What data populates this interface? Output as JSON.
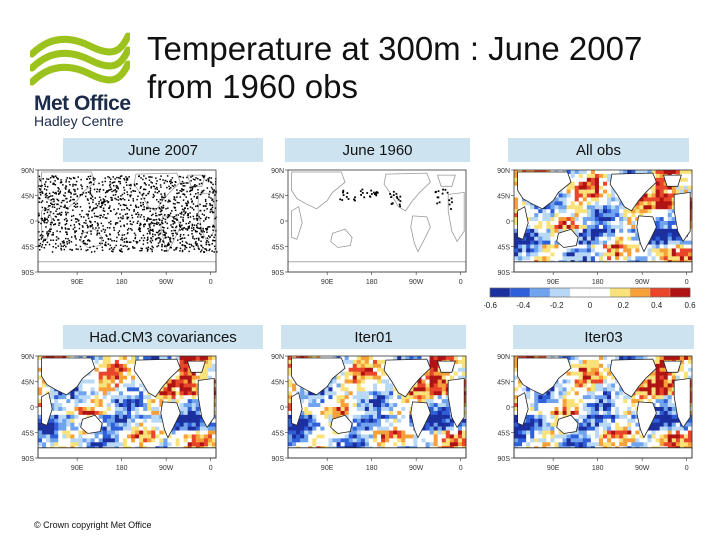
{
  "logo": {
    "line1": "Met Office",
    "line2": "Hadley Centre",
    "color": "#9cc31d"
  },
  "title": "Temperature at 300m : June 2007 from 1960 obs",
  "panels": [
    {
      "name": "june-2007",
      "label": "June 2007",
      "kind": "obs-dense"
    },
    {
      "name": "june-1960",
      "label": "June 1960",
      "kind": "obs-sparse"
    },
    {
      "name": "all-obs",
      "label": "All obs",
      "kind": "field"
    },
    {
      "name": "hadcm3",
      "label": "Had.CM3 covariances",
      "kind": "field"
    },
    {
      "name": "iter01",
      "label": "Iter01",
      "kind": "field"
    },
    {
      "name": "iter03",
      "label": "Iter03",
      "kind": "field"
    }
  ],
  "axes": {
    "lat_labels": [
      "90N",
      "45N",
      "0",
      "45S",
      "90S"
    ],
    "lon_labels": [
      "90E",
      "180",
      "90W",
      "0"
    ]
  },
  "colorbar": {
    "ticks": [
      "-0.6",
      "-0.4",
      "-0.2",
      "0",
      "0.2",
      "0.4",
      "0.6"
    ],
    "colors": [
      "#1c2f9e",
      "#2f5fd8",
      "#6fa3ee",
      "#b8d8f6",
      "#ffffff",
      "#ffffff",
      "#f9e27a",
      "#f7a03a",
      "#e8452a",
      "#b01313"
    ]
  },
  "footer": "© Crown copyright   Met Office"
}
